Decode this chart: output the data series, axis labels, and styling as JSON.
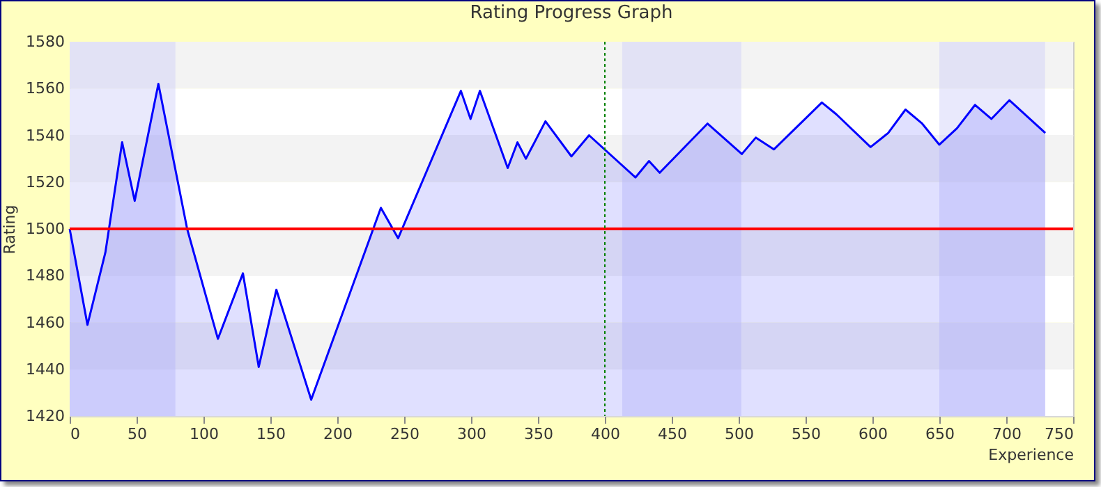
{
  "chart_data": {
    "type": "area",
    "title": "Rating Progress Graph",
    "xlabel": "Experience",
    "ylabel": "Rating",
    "x": [
      0,
      13.3,
      26.7,
      39.2,
      48.6,
      66.3,
      87.8,
      110.8,
      129.5,
      141.3,
      154.5,
      180.5,
      232.6,
      245.5,
      292.4,
      299.6,
      306.6,
      327.4,
      334.7,
      341,
      355.6,
      375,
      388.2,
      422.9,
      433,
      441,
      476.7,
      502.4,
      512.8,
      526.4,
      562.2,
      573,
      598.6,
      611.8,
      624.7,
      637.2,
      650,
      663.2,
      676.7,
      688.9,
      702.4,
      729.2
    ],
    "series": [
      {
        "color": "#0000ff",
        "values": [
          1500,
          1459,
          1490,
          1537,
          1512,
          1562,
          1500,
          1453,
          1481,
          1441,
          1474,
          1427,
          1509,
          1496,
          1559,
          1547,
          1559,
          1526,
          1537,
          1530,
          1546,
          1531,
          1540,
          1522,
          1529,
          1524,
          1545,
          1532,
          1539,
          1534,
          1554,
          1549,
          1535,
          1541,
          1551,
          1545,
          1536,
          1543,
          1553,
          1547,
          1555,
          1541
        ]
      }
    ],
    "xlim": [
      0,
      750
    ],
    "xticks": [
      0,
      50,
      100,
      150,
      200,
      250,
      300,
      350,
      400,
      450,
      500,
      550,
      600,
      650,
      700,
      750
    ],
    "ylim": [
      1420,
      1580
    ],
    "yticks": [
      1420,
      1440,
      1460,
      1480,
      1500,
      1520,
      1540,
      1560,
      1580
    ],
    "grid": "y",
    "ref_lines": [
      {
        "axis": "y",
        "value": 1500,
        "color": "#ff0000",
        "line_style": "solid"
      },
      {
        "axis": "x",
        "value": 400,
        "color": "#008000",
        "line_style": "dotted"
      }
    ],
    "bands": [
      {
        "axis": "x",
        "from": 0,
        "to": 79,
        "color": "#cfcff9"
      },
      {
        "axis": "x",
        "from": 413,
        "to": 502,
        "color": "#cfcff9"
      },
      {
        "axis": "x",
        "from": 650,
        "to": 729,
        "color": "#cfcff9"
      }
    ]
  }
}
